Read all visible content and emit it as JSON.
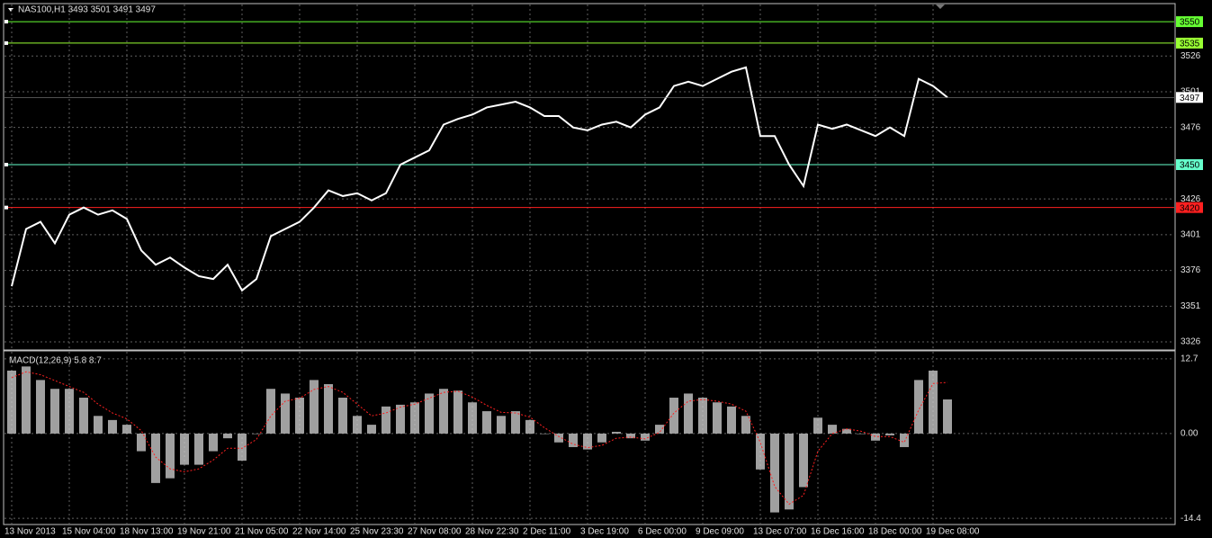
{
  "chart_data": [
    {
      "type": "line",
      "title": "NAS100,H1  3493 3501 3491 3497",
      "categories": [
        "13 Nov 2013",
        null,
        null,
        null,
        "15 Nov 04:00",
        null,
        null,
        null,
        "18 Nov 13:00",
        null,
        null,
        null,
        "19 Nov 21:00",
        null,
        null,
        null,
        "21 Nov 05:00",
        null,
        null,
        null,
        "22 Nov 14:00",
        null,
        null,
        null,
        "25 Nov 23:30",
        null,
        null,
        null,
        "27 Nov 08:00",
        null,
        null,
        null,
        "28 Nov 22:30",
        null,
        null,
        null,
        "2 Dec 11:00",
        null,
        null,
        null,
        "3 Dec 19:00",
        null,
        null,
        null,
        "6 Dec 00:00",
        null,
        null,
        null,
        "9 Dec 09:00",
        null,
        null,
        null,
        "13 Dec 07:00",
        null,
        null,
        null,
        "16 Dec 16:00",
        null,
        null,
        null,
        "18 Dec 00:00",
        null,
        null,
        null,
        "19 Dec 08:00",
        null
      ],
      "series": [
        {
          "color": "#ffffff",
          "values": [
            3365,
            3405,
            3410,
            3395,
            3415,
            3420,
            3415,
            3418,
            3412,
            3390,
            3380,
            3385,
            3378,
            3372,
            3370,
            3380,
            3362,
            3370,
            3400,
            3405,
            3410,
            3420,
            3432,
            3428,
            3430,
            3425,
            3430,
            3450,
            3455,
            3460,
            3478,
            3482,
            3485,
            3490,
            3492,
            3494,
            3490,
            3484,
            3484,
            3476,
            3474,
            3478,
            3480,
            3476,
            3485,
            3490,
            3505,
            3508,
            3505,
            3510,
            3515,
            3518,
            3470,
            3470,
            3450,
            3435,
            3478,
            3475,
            3478,
            3474,
            3470,
            3476,
            3470,
            3510,
            3505,
            3497
          ]
        }
      ],
      "levels": [
        {
          "value": 3550,
          "color": "#66ff33"
        },
        {
          "value": 3535,
          "color": "#99ff33"
        },
        {
          "value": 3450,
          "color": "#66ffcc"
        },
        {
          "value": 3420,
          "color": "#ff2020"
        }
      ],
      "ylim": [
        3321,
        3562
      ],
      "yticks": [
        3326,
        3351,
        3376,
        3401,
        3426,
        3476,
        3501,
        3526
      ],
      "grid": true
    },
    {
      "type": "bar",
      "title": "MACD(12,26,9) 5.8 8.7",
      "series": [
        {
          "color": "#c8c8c8",
          "values": [
            10.7,
            11.4,
            9.1,
            7.6,
            7.6,
            6.1,
            3.0,
            2.3,
            1.5,
            -3.0,
            -8.4,
            -7.6,
            -5.3,
            -5.3,
            -3.0,
            -0.8,
            -4.6,
            0,
            7.6,
            6.8,
            6.1,
            9.1,
            8.4,
            6.1,
            3.0,
            1.5,
            4.6,
            4.9,
            5.3,
            6.8,
            7.6,
            7.3,
            5.3,
            3.8,
            3.0,
            3.8,
            2.3,
            0,
            -1.5,
            -2.3,
            -2.7,
            -1.5,
            0.3,
            -0.8,
            -1.2,
            1.5,
            6.1,
            6.8,
            6.1,
            5.3,
            4.6,
            3.0,
            -6.1,
            -13.4,
            -12.9,
            -9.1,
            2.7,
            1.5,
            0.8,
            0,
            -1.2,
            -0.3,
            -2.3,
            9.1,
            10.7,
            5.8
          ]
        },
        {
          "color": "#ff2020",
          "values": [
            9.5,
            10.5,
            10.0,
            9.0,
            8.0,
            7.0,
            5.0,
            3.5,
            2.5,
            0.5,
            -4,
            -6,
            -6.5,
            -6,
            -4.5,
            -2.5,
            -2.5,
            -1,
            3,
            5.5,
            6,
            7.5,
            8,
            7,
            5,
            3,
            3.5,
            4.5,
            5,
            6,
            7,
            7.2,
            6.2,
            4.8,
            3.6,
            3.5,
            2.8,
            1,
            -0.5,
            -1.8,
            -2.4,
            -2,
            -0.8,
            -0.6,
            -0.9,
            0.2,
            3.5,
            5.5,
            5.8,
            5.5,
            5,
            3.8,
            -1.5,
            -9,
            -12,
            -10.5,
            -3,
            0,
            0.8,
            0.4,
            -0.5,
            -0.5,
            -1.5,
            4,
            8.5,
            8.7
          ]
        }
      ],
      "ylim": [
        -15.3,
        13.9
      ],
      "yticks": [
        12.7,
        {
          "value": 0,
          "label": "0.00"
        },
        -14.4
      ]
    }
  ]
}
